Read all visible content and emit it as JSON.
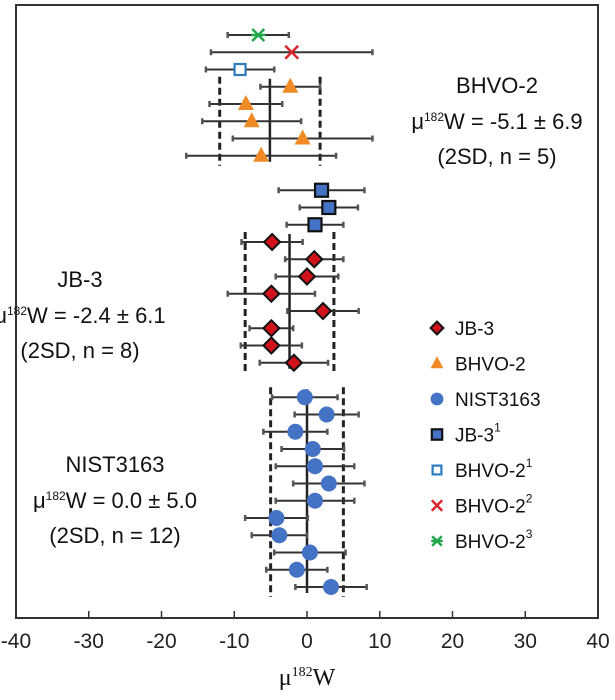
{
  "chart_data": {
    "type": "scatter",
    "xlabel": {
      "prefix": "μ",
      "sup": "182",
      "suffix": "W"
    },
    "xlim": [
      -40,
      40
    ],
    "xticks": [
      -40,
      -30,
      -20,
      -10,
      0,
      10,
      20,
      30,
      40
    ],
    "grid": false,
    "legend_placement": "right",
    "colors": {
      "JB-3": "#d0121b",
      "BHVO-2": "#f08a24",
      "NIST3163": "#4472c4",
      "JB-3_1": "#4472c4",
      "BHVO-2_1": "#2b7bbf",
      "BHVO-2_2": "#d8262a",
      "BHVO-2_3": "#22a64a"
    },
    "legend": [
      {
        "marker": "diamond",
        "label": "JB-3",
        "sup": ""
      },
      {
        "marker": "triangle",
        "label": "BHVO-2",
        "sup": ""
      },
      {
        "marker": "circle",
        "label": "NIST3163",
        "sup": ""
      },
      {
        "marker": "filled-square",
        "label": "JB-3",
        "sup": "1"
      },
      {
        "marker": "open-square",
        "label": "BHVO-2",
        "sup": "1"
      },
      {
        "marker": "x",
        "label": "BHVO-2",
        "sup": "2"
      },
      {
        "marker": "asterisk",
        "label": "BHVO-2",
        "sup": "3"
      }
    ],
    "groups": [
      {
        "name": "BHVO-2",
        "annotation": {
          "title": "BHVO-2",
          "stat_prefix": "μ",
          "stat_sup": "182",
          "stat_text": "W = -5.1 ± 6.9",
          "detail": "(2SD, n = 5)"
        },
        "mean": -5.1,
        "two_sd": 6.9,
        "points": [
          {
            "marker": "asterisk",
            "x": -6.7,
            "err": 4.2,
            "in_stats": false
          },
          {
            "marker": "x",
            "x": -2.1,
            "err": 11.1,
            "in_stats": false
          },
          {
            "marker": "open-square",
            "x": -9.2,
            "err": 4.7,
            "in_stats": false
          },
          {
            "marker": "triangle",
            "x": -2.3,
            "err": 4.1,
            "in_stats": true
          },
          {
            "marker": "triangle",
            "x": -8.4,
            "err": 5.0,
            "in_stats": true
          },
          {
            "marker": "triangle",
            "x": -7.6,
            "err": 6.8,
            "in_stats": true
          },
          {
            "marker": "triangle",
            "x": -0.6,
            "err": 9.6,
            "in_stats": true
          },
          {
            "marker": "triangle",
            "x": -6.3,
            "err": 10.3,
            "in_stats": true
          }
        ]
      },
      {
        "name": "JB-3",
        "annotation": {
          "title": "JB-3",
          "stat_prefix": "μ",
          "stat_sup": "182",
          "stat_text": "W = -2.4 ± 6.1",
          "detail": "(2SD, n = 8)"
        },
        "mean": -2.4,
        "two_sd": 6.1,
        "points": [
          {
            "marker": "filled-square",
            "x": 2.0,
            "err": 5.9,
            "in_stats": false
          },
          {
            "marker": "filled-square",
            "x": 3.0,
            "err": 4.0,
            "in_stats": false
          },
          {
            "marker": "filled-square",
            "x": 1.1,
            "err": 3.9,
            "in_stats": false
          },
          {
            "marker": "diamond",
            "x": -4.8,
            "err": 4.2,
            "in_stats": true
          },
          {
            "marker": "diamond",
            "x": 1.0,
            "err": 4.0,
            "in_stats": true
          },
          {
            "marker": "diamond",
            "x": 0.0,
            "err": 4.3,
            "in_stats": true
          },
          {
            "marker": "diamond",
            "x": -4.9,
            "err": 6.0,
            "in_stats": true
          },
          {
            "marker": "diamond",
            "x": 2.2,
            "err": 4.9,
            "in_stats": true
          },
          {
            "marker": "diamond",
            "x": -4.9,
            "err": 3.0,
            "in_stats": true
          },
          {
            "marker": "diamond",
            "x": -4.9,
            "err": 4.2,
            "in_stats": true
          },
          {
            "marker": "diamond",
            "x": -1.8,
            "err": 4.7,
            "in_stats": true
          }
        ]
      },
      {
        "name": "NIST3163",
        "annotation": {
          "title": "NIST3163",
          "stat_prefix": "μ",
          "stat_sup": "182",
          "stat_text": "W = 0.0 ± 5.0",
          "detail": "(2SD, n = 12)"
        },
        "mean": 0.0,
        "two_sd": 5.0,
        "points": [
          {
            "marker": "circle",
            "x": -0.3,
            "err": 4.5,
            "in_stats": true
          },
          {
            "marker": "circle",
            "x": 2.7,
            "err": 4.4,
            "in_stats": true
          },
          {
            "marker": "circle",
            "x": -1.6,
            "err": 4.4,
            "in_stats": true
          },
          {
            "marker": "circle",
            "x": 0.8,
            "err": 4.3,
            "in_stats": true
          },
          {
            "marker": "circle",
            "x": 1.1,
            "err": 5.4,
            "in_stats": true
          },
          {
            "marker": "circle",
            "x": 3.0,
            "err": 4.9,
            "in_stats": true
          },
          {
            "marker": "circle",
            "x": 1.1,
            "err": 5.4,
            "in_stats": true
          },
          {
            "marker": "circle",
            "x": -4.2,
            "err": 4.3,
            "in_stats": true
          },
          {
            "marker": "circle",
            "x": -3.8,
            "err": 3.8,
            "in_stats": true
          },
          {
            "marker": "circle",
            "x": 0.4,
            "err": 4.9,
            "in_stats": true
          },
          {
            "marker": "circle",
            "x": -1.4,
            "err": 4.2,
            "in_stats": true
          },
          {
            "marker": "circle",
            "x": 3.3,
            "err": 4.9,
            "in_stats": true
          }
        ]
      }
    ]
  }
}
